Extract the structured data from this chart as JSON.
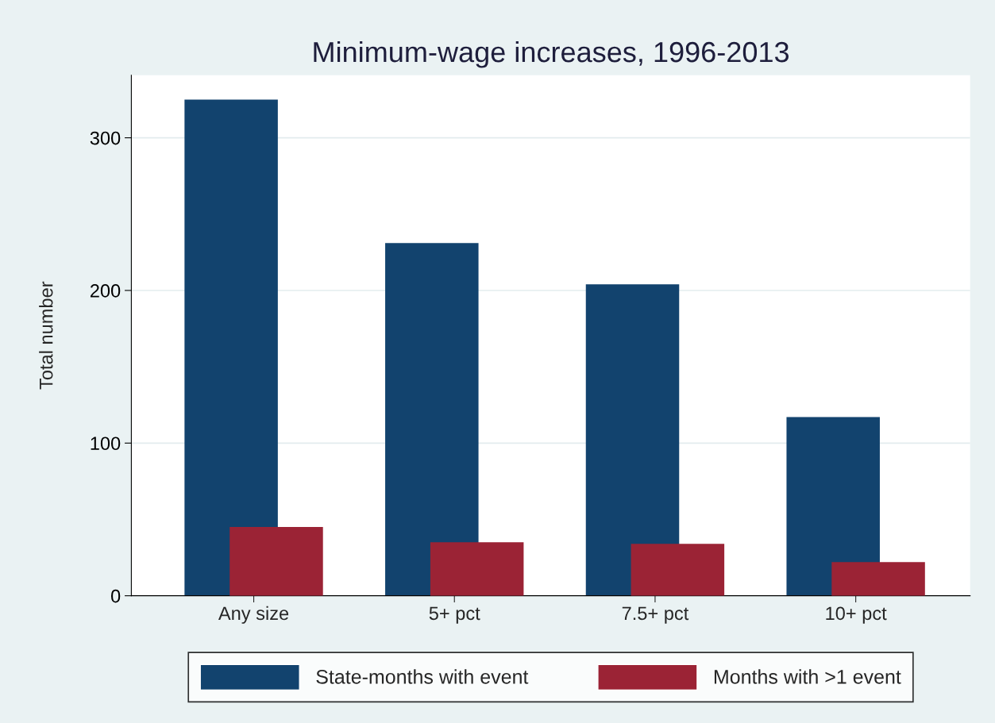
{
  "chart_data": {
    "type": "bar",
    "title": "Minimum-wage increases, 1996-2013",
    "ylabel": "Total number",
    "categories": [
      "Any size",
      "5+ pct",
      "7.5+ pct",
      "10+ pct"
    ],
    "series": [
      {
        "name": "State-months with event",
        "color": "#12436e",
        "values": [
          325,
          231,
          204,
          117
        ]
      },
      {
        "name": "Months with >1 event",
        "color": "#9b2335",
        "values": [
          45,
          35,
          34,
          22
        ]
      }
    ],
    "ylim": [
      0,
      341
    ],
    "yticks": [
      0,
      100,
      200,
      300
    ],
    "grid": "y",
    "legend": "bottom"
  }
}
